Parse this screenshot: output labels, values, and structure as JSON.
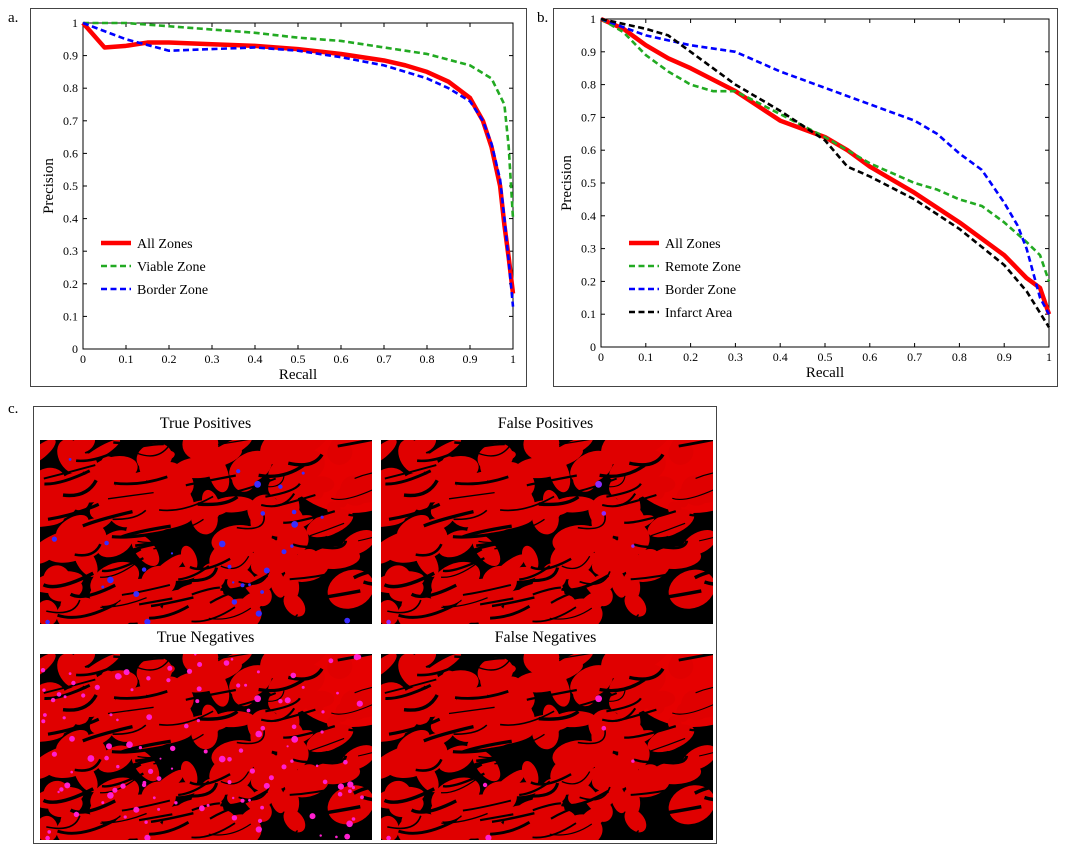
{
  "panels": {
    "a": {
      "letter": "a."
    },
    "b": {
      "letter": "b."
    },
    "c": {
      "letter": "c."
    }
  },
  "chart_data": [
    {
      "type": "line",
      "xlabel": "Recall",
      "ylabel": "Precision",
      "xlim": [
        0,
        1
      ],
      "ylim": [
        0,
        1
      ],
      "xticks": [
        "0",
        "0.1",
        "0.2",
        "0.3",
        "0.4",
        "0.5",
        "0.6",
        "0.7",
        "0.8",
        "0.9",
        "1"
      ],
      "yticks": [
        "0",
        "0.1",
        "0.2",
        "0.3",
        "0.4",
        "0.5",
        "0.6",
        "0.7",
        "0.8",
        "0.9",
        "1"
      ],
      "grid": false,
      "legend_position": "bottom-left",
      "series": [
        {
          "name": "All Zones",
          "color": "#ff0000",
          "style": "solid",
          "x": [
            0,
            0.05,
            0.1,
            0.15,
            0.2,
            0.3,
            0.4,
            0.5,
            0.6,
            0.7,
            0.75,
            0.8,
            0.85,
            0.9,
            0.93,
            0.95,
            0.97,
            0.98,
            0.99,
            1.0
          ],
          "y": [
            1.0,
            0.925,
            0.93,
            0.94,
            0.94,
            0.935,
            0.93,
            0.92,
            0.905,
            0.885,
            0.87,
            0.85,
            0.82,
            0.77,
            0.7,
            0.62,
            0.5,
            0.38,
            0.28,
            0.17
          ]
        },
        {
          "name": "Viable Zone",
          "color": "#22aa22",
          "style": "dashed",
          "x": [
            0,
            0.1,
            0.2,
            0.3,
            0.4,
            0.5,
            0.6,
            0.7,
            0.8,
            0.9,
            0.95,
            0.98,
            0.99,
            1.0
          ],
          "y": [
            1.0,
            1.0,
            0.99,
            0.98,
            0.97,
            0.955,
            0.945,
            0.925,
            0.905,
            0.87,
            0.83,
            0.75,
            0.62,
            0.4
          ]
        },
        {
          "name": "Border Zone",
          "color": "#0000ff",
          "style": "dashed",
          "x": [
            0,
            0.1,
            0.2,
            0.3,
            0.4,
            0.5,
            0.6,
            0.7,
            0.8,
            0.85,
            0.9,
            0.93,
            0.95,
            0.97,
            0.98,
            0.99,
            1.0
          ],
          "y": [
            1.0,
            0.95,
            0.915,
            0.92,
            0.925,
            0.915,
            0.895,
            0.87,
            0.83,
            0.8,
            0.76,
            0.7,
            0.63,
            0.52,
            0.4,
            0.27,
            0.13
          ]
        }
      ]
    },
    {
      "type": "line",
      "xlabel": "Recall",
      "ylabel": "Precision",
      "xlim": [
        0,
        1
      ],
      "ylim": [
        0,
        1
      ],
      "xticks": [
        "0",
        "0.1",
        "0.2",
        "0.3",
        "0.4",
        "0.5",
        "0.6",
        "0.7",
        "0.8",
        "0.9",
        "1"
      ],
      "yticks": [
        "0",
        "0.1",
        "0.2",
        "0.3",
        "0.4",
        "0.5",
        "0.6",
        "0.7",
        "0.8",
        "0.9",
        "1"
      ],
      "grid": false,
      "legend_position": "bottom-left",
      "series": [
        {
          "name": "All Zones",
          "color": "#ff0000",
          "style": "solid",
          "x": [
            0,
            0.05,
            0.1,
            0.15,
            0.2,
            0.3,
            0.4,
            0.5,
            0.55,
            0.6,
            0.7,
            0.8,
            0.9,
            0.95,
            0.98,
            1.0
          ],
          "y": [
            1.0,
            0.97,
            0.92,
            0.88,
            0.85,
            0.78,
            0.69,
            0.64,
            0.6,
            0.55,
            0.47,
            0.38,
            0.28,
            0.21,
            0.18,
            0.1
          ]
        },
        {
          "name": "Remote Zone",
          "color": "#22aa22",
          "style": "dashed",
          "x": [
            0,
            0.05,
            0.1,
            0.15,
            0.2,
            0.25,
            0.3,
            0.4,
            0.5,
            0.6,
            0.7,
            0.75,
            0.8,
            0.85,
            0.9,
            0.95,
            0.98,
            1.0
          ],
          "y": [
            1.0,
            0.96,
            0.89,
            0.84,
            0.8,
            0.78,
            0.78,
            0.71,
            0.64,
            0.56,
            0.5,
            0.48,
            0.45,
            0.43,
            0.38,
            0.32,
            0.28,
            0.2
          ]
        },
        {
          "name": "Border Zone",
          "color": "#0000ff",
          "style": "dashed",
          "x": [
            0,
            0.1,
            0.2,
            0.3,
            0.4,
            0.5,
            0.6,
            0.7,
            0.75,
            0.8,
            0.85,
            0.9,
            0.93,
            0.95,
            0.97,
            0.98,
            1.0
          ],
          "y": [
            1.0,
            0.95,
            0.92,
            0.9,
            0.84,
            0.79,
            0.74,
            0.69,
            0.65,
            0.59,
            0.54,
            0.44,
            0.37,
            0.3,
            0.2,
            0.15,
            0.1
          ]
        },
        {
          "name": "Infarct Area",
          "color": "#000000",
          "style": "dashed",
          "x": [
            0,
            0.1,
            0.15,
            0.2,
            0.3,
            0.4,
            0.5,
            0.55,
            0.6,
            0.7,
            0.8,
            0.9,
            0.95,
            1.0
          ],
          "y": [
            1.0,
            0.97,
            0.95,
            0.9,
            0.8,
            0.72,
            0.63,
            0.55,
            0.52,
            0.45,
            0.36,
            0.25,
            0.17,
            0.06
          ]
        }
      ]
    }
  ],
  "micrographs": {
    "true_positives": {
      "title": "True Positives",
      "marker_color": "#3a2cff"
    },
    "false_positives": {
      "title": "False Positives",
      "marker_color": "#8a2cff"
    },
    "true_negatives": {
      "title": "True Negatives",
      "marker_color": "#ff1fd0"
    },
    "false_negatives": {
      "title": "False Negatives",
      "marker_color": "#ff1fd0"
    }
  }
}
